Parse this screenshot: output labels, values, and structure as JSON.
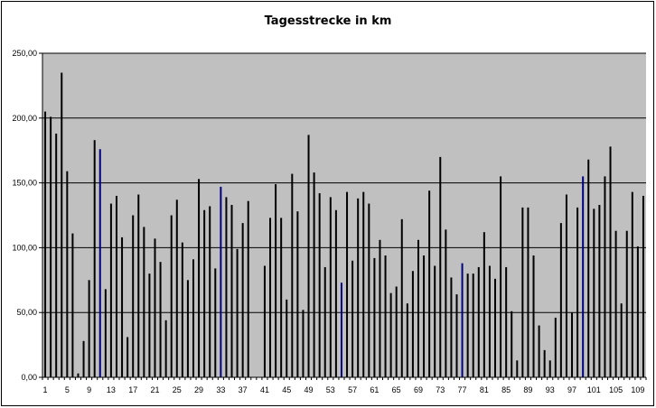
{
  "chart_data": {
    "type": "bar",
    "title": "Tagesstrecke in km",
    "xlabel": "",
    "ylabel": "",
    "ylim": [
      0,
      250
    ],
    "y_ticks": [
      "0,00",
      "50,00",
      "100,00",
      "150,00",
      "200,00",
      "250,00"
    ],
    "grid": "horizontal",
    "legend": "none",
    "plot_background": "#c0c0c0",
    "bar_color": "#000000",
    "highlight_color": "#000080",
    "x_tick_labels": [
      "1",
      "5",
      "9",
      "13",
      "17",
      "21",
      "25",
      "29",
      "33",
      "37",
      "41",
      "45",
      "49",
      "53",
      "57",
      "61",
      "65",
      "69",
      "73",
      "77",
      "81",
      "85",
      "89",
      "93",
      "97",
      "101",
      "105",
      "109"
    ],
    "categories": [
      1,
      2,
      3,
      4,
      5,
      6,
      7,
      8,
      9,
      10,
      11,
      12,
      13,
      14,
      15,
      16,
      17,
      18,
      19,
      20,
      21,
      22,
      23,
      24,
      25,
      26,
      27,
      28,
      29,
      30,
      31,
      32,
      33,
      34,
      35,
      36,
      37,
      38,
      39,
      40,
      41,
      42,
      43,
      44,
      45,
      46,
      47,
      48,
      49,
      50,
      51,
      52,
      53,
      54,
      55,
      56,
      57,
      58,
      59,
      60,
      61,
      62,
      63,
      64,
      65,
      66,
      67,
      68,
      69,
      70,
      71,
      72,
      73,
      74,
      75,
      76,
      77,
      78,
      79,
      80,
      81,
      82,
      83,
      84,
      85,
      86,
      87,
      88,
      89,
      90,
      91,
      92,
      93,
      94,
      95,
      96,
      97,
      98,
      99,
      100,
      101,
      102,
      103,
      104,
      105,
      106,
      107,
      108,
      109,
      110
    ],
    "values": [
      205,
      201,
      188,
      235,
      159,
      111,
      3,
      28,
      75,
      183,
      176,
      68,
      134,
      140,
      108,
      31,
      125,
      141,
      116,
      80,
      107,
      89,
      44,
      125,
      137,
      104,
      75,
      91,
      153,
      129,
      132,
      84,
      147,
      139,
      133,
      99,
      119,
      136,
      0,
      0,
      86,
      123,
      149,
      123,
      60,
      157,
      128,
      52,
      187,
      158,
      142,
      85,
      139,
      129,
      73,
      143,
      90,
      138,
      143,
      134,
      92,
      106,
      94,
      65,
      70,
      122,
      57,
      82,
      106,
      94,
      144,
      86,
      170,
      114,
      77,
      64,
      88,
      80,
      80,
      85,
      112,
      86,
      76,
      155,
      85,
      51,
      13,
      131,
      131,
      94,
      40,
      21,
      13,
      46,
      119,
      141,
      50,
      131,
      155,
      168,
      130,
      133,
      155,
      178,
      113,
      57,
      113,
      143,
      101,
      140
    ],
    "highlight_indices": [
      10,
      32,
      54,
      76,
      98
    ]
  }
}
